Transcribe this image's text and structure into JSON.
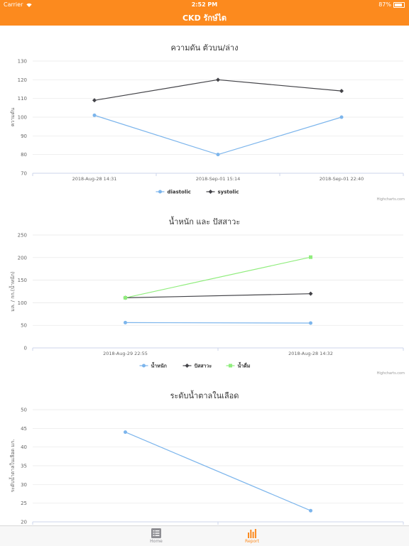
{
  "status_bar": {
    "carrier": "Carrier",
    "time": "2:52 PM",
    "battery": "87%",
    "battery_level": 0.87
  },
  "nav": {
    "title": "CKD รักษ์ไต"
  },
  "credit": "Highcharts.com",
  "tabs": [
    {
      "label": "Home",
      "icon": "list-icon",
      "active": false
    },
    {
      "label": "Report",
      "icon": "bar-chart-icon",
      "active": true
    }
  ],
  "colors": {
    "accent": "#fc8a1e",
    "blue": "#7cb5ec",
    "black": "#434348",
    "green": "#90ed7d",
    "inactive": "#8e8e93"
  },
  "chart_data": [
    {
      "type": "line",
      "title": "ความดัน ตัวบน/ล่าง",
      "ylabel": "ความดัน",
      "categories": [
        "2018-Aug-28 14:31",
        "2018-Sep-01 15:14",
        "2018-Sep-01 22:40"
      ],
      "ylim": [
        70,
        130
      ],
      "yticks": [
        70,
        80,
        90,
        100,
        110,
        120,
        130
      ],
      "series": [
        {
          "name": "diastolic",
          "values": [
            101,
            80,
            100
          ],
          "color": "#7cb5ec",
          "marker": "circle"
        },
        {
          "name": "systolic",
          "values": [
            109,
            120,
            114
          ],
          "color": "#434348",
          "marker": "diamond"
        }
      ],
      "legend": "bottom-center",
      "grid": true
    },
    {
      "type": "line",
      "title": "น้ำหนัก และ ปัสสาวะ",
      "ylabel": "มล. / กก.(น้ำหนัก)",
      "categories": [
        "2018-Aug-29 22:55",
        "2018-Aug-28 14:32"
      ],
      "ylim": [
        0,
        250
      ],
      "yticks": [
        0,
        50,
        100,
        150,
        200,
        250
      ],
      "series": [
        {
          "name": "น้ำหนัก",
          "values": [
            56,
            55
          ],
          "color": "#7cb5ec",
          "marker": "circle"
        },
        {
          "name": "ปัสสาวะ",
          "values": [
            111,
            120
          ],
          "color": "#434348",
          "marker": "diamond"
        },
        {
          "name": "น้ำดื่ม",
          "values": [
            111,
            201
          ],
          "color": "#90ed7d",
          "marker": "square"
        }
      ],
      "legend": "bottom-center",
      "grid": true
    },
    {
      "type": "line",
      "title": "ระดับน้ำตาลในเลือด",
      "ylabel": "ระดับน้ำตาลในเลือด มก.",
      "categories": [
        "",
        ""
      ],
      "ylim": [
        20,
        50
      ],
      "yticks": [
        20,
        25,
        30,
        35,
        40,
        45,
        50
      ],
      "series": [
        {
          "values": [
            44,
            23
          ],
          "color": "#7cb5ec",
          "marker": "circle"
        }
      ],
      "legend": "none",
      "grid": true
    }
  ]
}
